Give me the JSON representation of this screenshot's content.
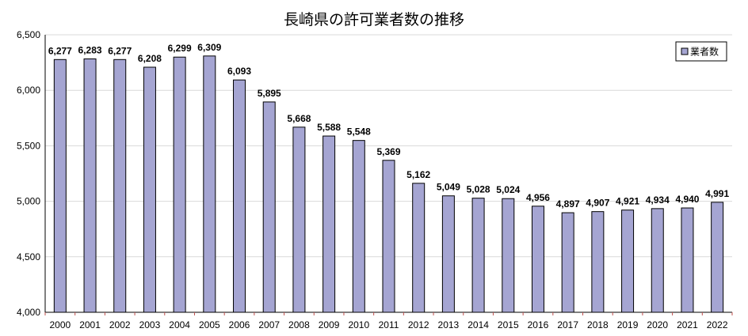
{
  "chart_data": {
    "type": "bar",
    "title": "長崎県の許可業者数の推移",
    "xlabel": "",
    "ylabel": "",
    "categories": [
      "2000",
      "2001",
      "2002",
      "2003",
      "2004",
      "2005",
      "2006",
      "2007",
      "2008",
      "2009",
      "2010",
      "2011",
      "2012",
      "2013",
      "2014",
      "2015",
      "2016",
      "2017",
      "2018",
      "2019",
      "2020",
      "2021",
      "2022"
    ],
    "series": [
      {
        "name": "業者数",
        "values": [
          6277,
          6283,
          6277,
          6208,
          6299,
          6309,
          6093,
          5895,
          5668,
          5588,
          5548,
          5369,
          5162,
          5049,
          5028,
          5024,
          4956,
          4897,
          4907,
          4921,
          4934,
          4940,
          4991
        ],
        "color": "#a5a5d2",
        "border_color": "#000000"
      }
    ],
    "data_labels": [
      "6,277",
      "6,283",
      "6,277",
      "6,208",
      "6,299",
      "6,309",
      "6,093",
      "5,895",
      "5,668",
      "5,588",
      "5,548",
      "5,369",
      "5,162",
      "5,049",
      "5,028",
      "5,024",
      "4,956",
      "4,897",
      "4,907",
      "4,921",
      "4,934",
      "4,940",
      "4,991"
    ],
    "yticks": [
      4000,
      4500,
      5000,
      5500,
      6000,
      6500
    ],
    "ytick_labels": [
      "4,000",
      "4,500",
      "5,000",
      "5,500",
      "6,000",
      "6,500"
    ],
    "ylim": [
      4000,
      6500
    ],
    "grid": true,
    "legend_position": "top-right",
    "x_tick_color": "#c0504d"
  }
}
